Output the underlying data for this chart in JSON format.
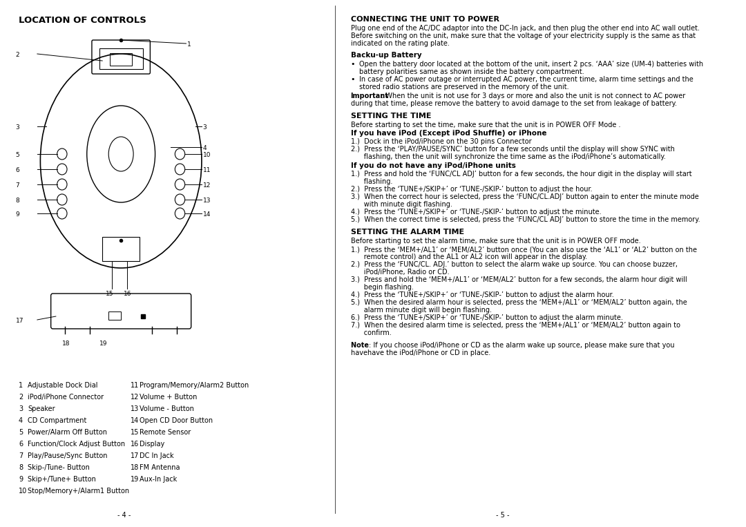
{
  "bg_color": "#ffffff",
  "left_title": "LOCATION OF CONTROLS",
  "left_col_labels": [
    [
      1,
      "Adjustable Dock Dial"
    ],
    [
      2,
      "iPod/iPhone Connector"
    ],
    [
      3,
      "Speaker"
    ],
    [
      4,
      "CD Compartment"
    ],
    [
      5,
      "Power/Alarm Off Button"
    ],
    [
      6,
      "Function/Clock Adjust Button"
    ],
    [
      7,
      "Play/Pause/Sync Button"
    ],
    [
      8,
      "Skip-/Tune- Button"
    ],
    [
      9,
      "Skip+/Tune+ Button"
    ],
    [
      10,
      "Stop/Memory+/Alarm1 Button"
    ]
  ],
  "right_col_labels": [
    [
      11,
      "Program/Memory/Alarm2 Button"
    ],
    [
      12,
      "Volume + Button"
    ],
    [
      13,
      "Volume - Button"
    ],
    [
      14,
      "Open CD Door Button"
    ],
    [
      15,
      "Remote Sensor"
    ],
    [
      16,
      "Display"
    ],
    [
      17,
      "DC In Jack"
    ],
    [
      18,
      "FM Antenna"
    ],
    [
      19,
      "Aux-In Jack"
    ]
  ],
  "right_title": "CONNECTING THE UNIT TO POWER",
  "connecting_body": "Plug one end of the AC/DC adaptor into the DC-In jack, and then plug the other end into AC wall outlet.\nBefore switching on the unit, make sure that the voltage of your electricity supply is the same as that\nindicated on the rating plate.",
  "backup_title": "Backu-up Battery",
  "backup_bullets": [
    "Open the battery door located at the bottom of the unit, insert 2 pcs. ‘AAA’ size (UM-4) batteries with\nbattery polarities same as shown inside the battery compartment.",
    "In case of AC power outage or interrupted AC power, the current time, alarm time settings and the\nstored radio stations are preserved in the memory of the unit."
  ],
  "important_text": "Important: When the unit is not use for 3 days or more and also the unit is not connect to AC power\nduring that time, please remove the battery to avoid damage to the set from leakage of battery.",
  "setting_time_title": "SETTING THE TIME",
  "setting_time_intro": "Before starting to set the time, make sure that the unit is in POWER OFF Mode .",
  "ipod_section_title": "If you have iPod (Except iPod Shuffle) or iPhone",
  "ipod_steps": [
    "1.)  Dock in the iPod/iPhone on the 30 pins Connector",
    "2.)  Press the ‘PLAY/PAUSE/SYNC’ button for a few seconds until the display will show SYNC with\n      flashing, then the unit will synchronize the time same as the iPod/iPhone’s automatically."
  ],
  "no_ipod_title": "If you do not have any iPod/iPhone units",
  "no_ipod_steps": [
    "1.)  Press and hold the ‘FUNC/CL ADJ’ button for a few seconds, the hour digit in the display will start\n      flashing.",
    "2.)  Press the ‘TUNE+/SKIP+’ or ‘TUNE-/SKIP-’ button to adjust the hour.",
    "3.)  When the correct hour is selected, press the ‘FUNC/CL.ADJ’ button again to enter the minute mode\n      with minute digit flashing.",
    "4.)  Press the ‘TUNE+/SKIP+’ or ‘TUNE-/SKIP-’ button to adjust the minute.",
    "5.)  When the correct time is selected, press the ‘FUNC/CL ADJ’ button to store the time in the memory."
  ],
  "alarm_title": "SETTING THE ALARM TIME",
  "alarm_intro": "Before starting to set the alarm time, make sure that the unit is in POWER OFF mode.",
  "alarm_steps": [
    "1.)  Press the ‘MEM+/AL1’ or ‘MEM/AL2’ button once (You can also use the ‘AL1’ or ‘AL2’ button on the\n      remote control) and the AL1 or AL2 icon will appear in the display.",
    "2.)  Press the ‘FUNC/CL. ADJ.’ button to select the alarm wake up source. You can choose buzzer,\n      iPod/iPhone, Radio or CD.",
    "3.)  Press and hold the ‘MEM+/AL1’ or ‘MEM/AL2’ button for a few seconds, the alarm hour digit will\n      begin flashing.",
    "4.)  Press the ‘TUNE+/SKIP+’ or ‘TUNE-/SKIP-’ button to adjust the alarm hour.",
    "5.)  When the desired alarm hour is selected, press the ‘MEM+/AL1’ or ‘MEM/AL2’ button again, the\n      alarm minute digit will begin flashing.",
    "6.)  Press the ‘TUNE+/SKIP+’ or ‘TUNE-/SKIP-’ button to adjust the alarm minute.",
    "7.)  When the desired alarm time is selected, press the ‘MEM+/AL1’ or ‘MEM/AL2’ button again to\n      confirm."
  ],
  "note_text": "Note : If you choose iPod/iPhone or CD as the alarm wake up source, please make sure that you\nhavehave the iPod/iPhone or CD in place.",
  "page_left": "- 4 -",
  "page_right": "- 5 -"
}
